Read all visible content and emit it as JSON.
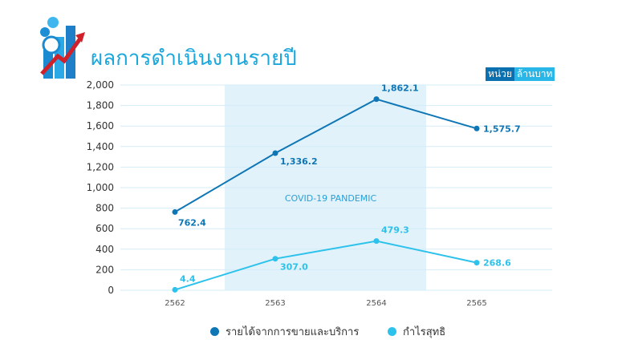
{
  "header": {
    "title": "ผลการดำเนินงานรายปี"
  },
  "unit": {
    "label": "หน่วย",
    "value": "ล้านบาท"
  },
  "annotation": {
    "label": "COVID-19 PANDEMIC"
  },
  "colors": {
    "revenue": "#0e76b5",
    "profit": "#2cc2ec",
    "band": "#e1f2fb",
    "grid": "#d3ecf8",
    "title": "#1aa7dc"
  },
  "chart_data": {
    "type": "line",
    "categories": [
      "2562",
      "2563",
      "2564",
      "2565"
    ],
    "ylim": [
      0,
      2000
    ],
    "yticks": [
      "0",
      "200",
      "400",
      "600",
      "800",
      "1,000",
      "1,200",
      "1,400",
      "1,600",
      "1,800",
      "2,000"
    ],
    "grid": true,
    "legend_position": "bottom",
    "shaded_band": {
      "from": "2563",
      "to": "2564",
      "label": "COVID-19 PANDEMIC"
    },
    "series": [
      {
        "name": "รายได้จากการขายและบริการ",
        "values": [
          762.4,
          1336.2,
          1862.1,
          1575.7
        ],
        "labels": [
          "762.4",
          "1,336.2",
          "1,862.1",
          "1,575.7"
        ]
      },
      {
        "name": "กำไรสุทธิ",
        "values": [
          4.4,
          307.0,
          479.3,
          268.6
        ],
        "labels": [
          "4.4",
          "307.0",
          "479.3",
          "268.6"
        ]
      }
    ]
  }
}
